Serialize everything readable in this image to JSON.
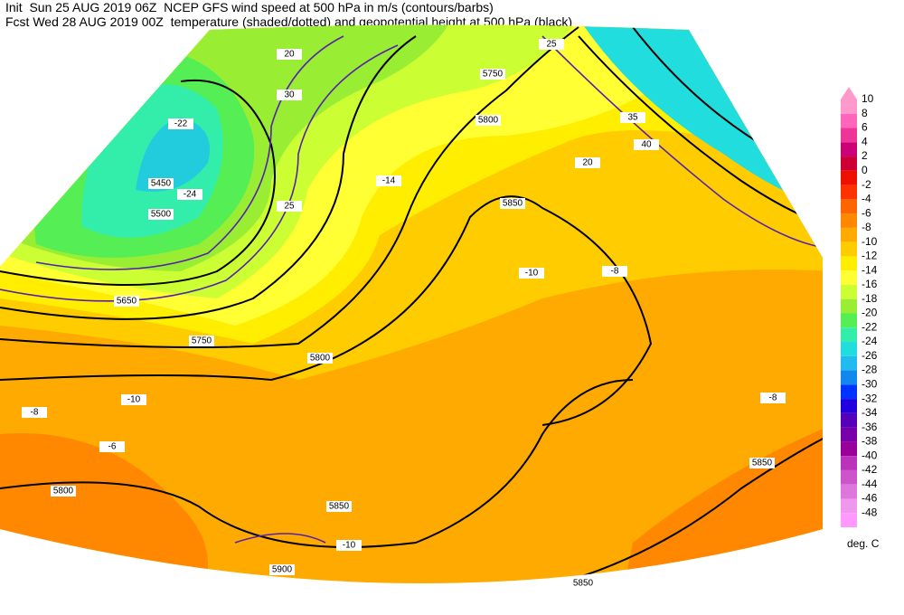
{
  "header": {
    "line1": "Init  Sun 25 AUG 2019 06Z  NCEP GFS wind speed at 500 hPa in m/s (contours/barbs)",
    "line2": "Fcst Wed 28 AUG 2019 00Z  temperature (shaded/dotted) and geopotential height at 500 hPa (black)"
  },
  "colorbar": {
    "labels": [
      "10",
      "8",
      "6",
      "4",
      "2",
      "0",
      "-2",
      "-4",
      "-6",
      "-8",
      "-10",
      "-12",
      "-14",
      "-16",
      "-18",
      "-20",
      "-22",
      "-24",
      "-26",
      "-28",
      "-30",
      "-32",
      "-34",
      "-36",
      "-38",
      "-40",
      "-42",
      "-44",
      "-46",
      "-48"
    ],
    "colors": [
      "#ff99cc",
      "#ff66bb",
      "#ee3399",
      "#cc0077",
      "#cc0033",
      "#ee1100",
      "#ff3300",
      "#ff6600",
      "#ff8800",
      "#ffaa00",
      "#ffcc00",
      "#ffee00",
      "#ffff33",
      "#ccff33",
      "#99ee33",
      "#55ee55",
      "#33eeaa",
      "#22dddd",
      "#22bbee",
      "#1188ee",
      "#0033ff",
      "#2200dd",
      "#5500bb",
      "#7700aa",
      "#990099",
      "#bb33bb",
      "#cc55cc",
      "#dd77dd",
      "#ee99ee",
      "#ff99ff"
    ],
    "unit": "deg. C"
  },
  "map": {
    "labels": [
      "5450",
      "5500",
      "5650",
      "5750",
      "5800",
      "5850",
      "5800",
      "5850",
      "5900",
      "5850",
      "5750",
      "5800",
      "5850",
      "20",
      "25",
      "30",
      "25",
      "20",
      "35",
      "40",
      "-22",
      "-24",
      "-14",
      "-10",
      "-8",
      "-10",
      "-8",
      "-6",
      "-10",
      "-8"
    ]
  }
}
